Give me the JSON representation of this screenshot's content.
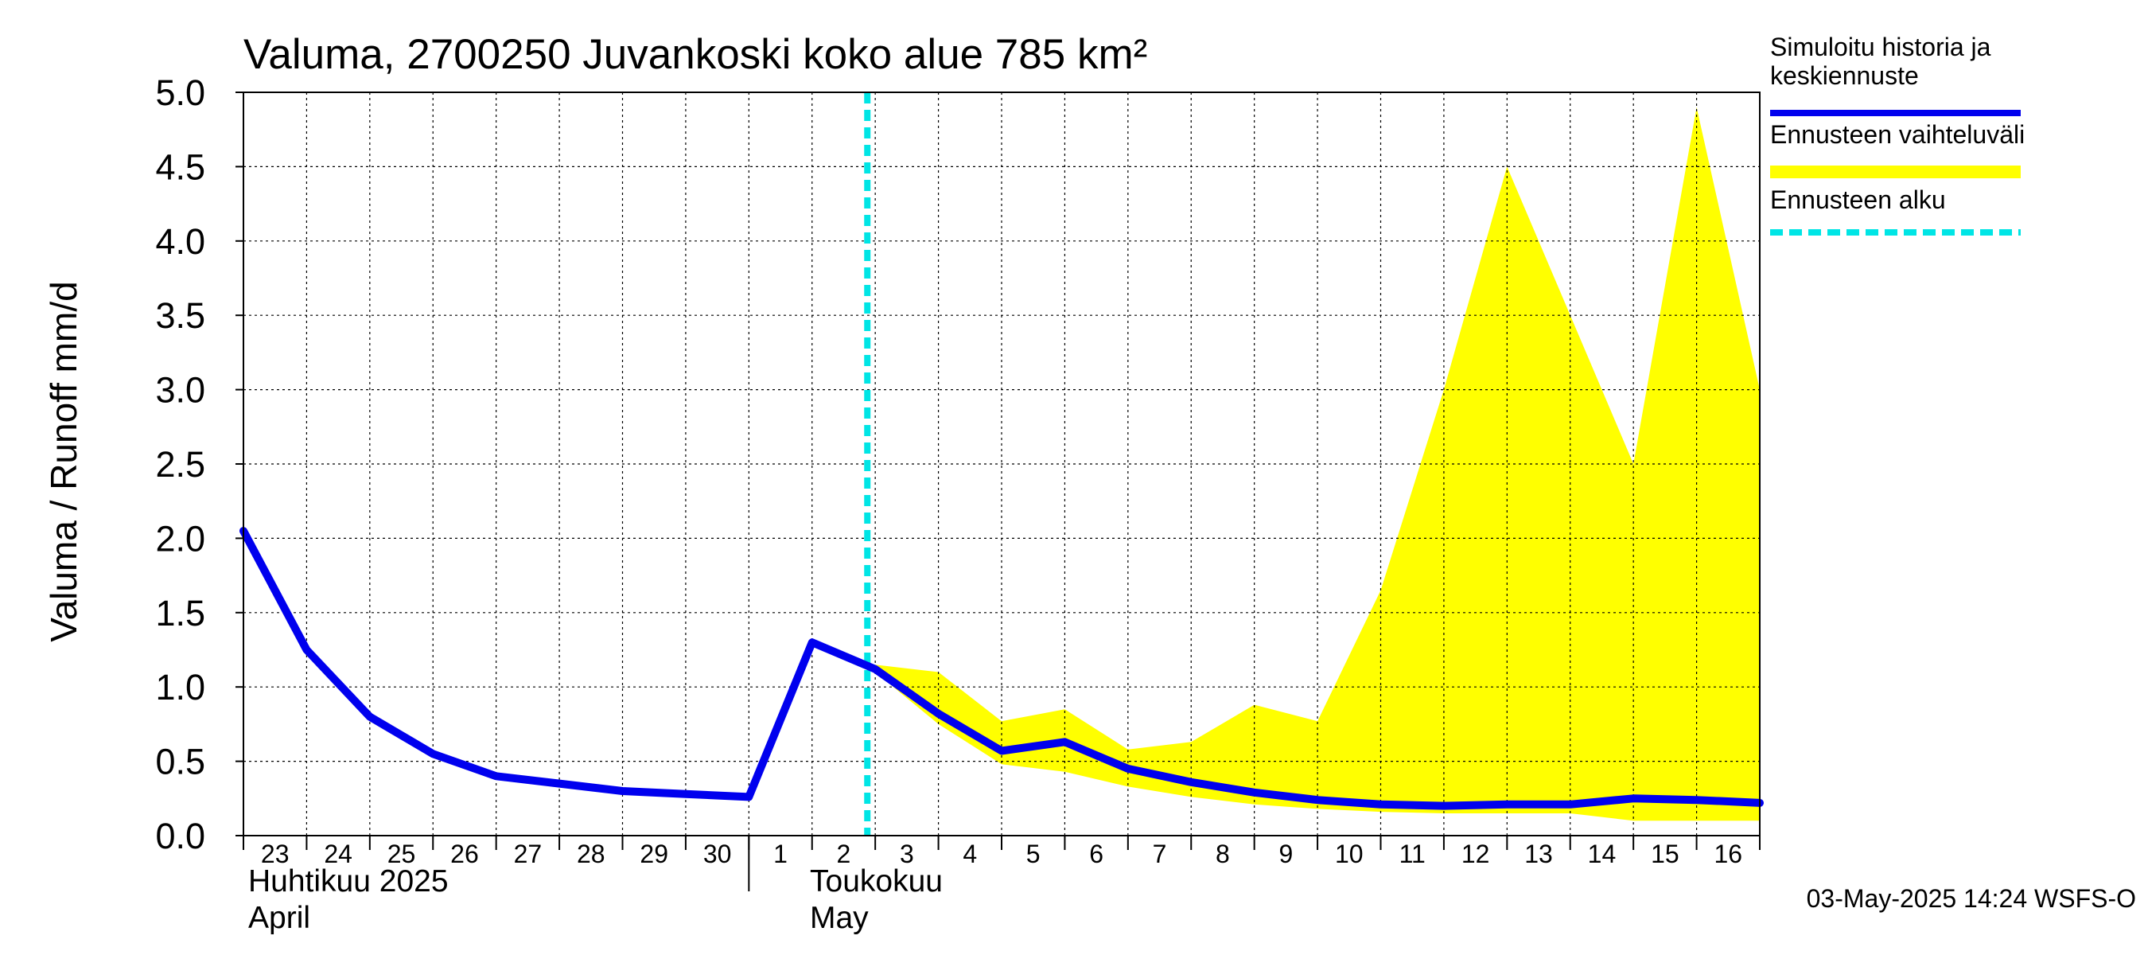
{
  "chart_data": {
    "type": "line",
    "title": "Valuma, 2700250 Juvankoski koko alue 785 km²",
    "ylabel": "Valuma / Runoff     mm/d",
    "ylim": [
      0,
      5.0
    ],
    "y_ticks": [
      "0.0",
      "0.5",
      "1.0",
      "1.5",
      "2.0",
      "2.5",
      "3.0",
      "3.5",
      "4.0",
      "4.5",
      "5.0"
    ],
    "grid": true,
    "legend_position": "right",
    "x_tick_labels": [
      "23",
      "24",
      "25",
      "26",
      "27",
      "28",
      "29",
      "30",
      "1",
      "2",
      "3",
      "4",
      "5",
      "6",
      "7",
      "8",
      "9",
      "10",
      "11",
      "12",
      "13",
      "14",
      "15",
      "16"
    ],
    "month_labels": [
      {
        "line1": "Huhtikuu  2025",
        "line2": "April"
      },
      {
        "line1": "Toukokuu",
        "line2": "May"
      }
    ],
    "x_start": "2025-04-23",
    "x_end": "2025-05-17",
    "series": [
      {
        "name": "Simuloitu historia ja keskiennuste",
        "color": "#0000ee",
        "x": [
          "2025-04-23",
          "2025-04-24",
          "2025-04-25",
          "2025-04-26",
          "2025-04-27",
          "2025-04-28",
          "2025-04-29",
          "2025-04-30",
          "2025-05-01",
          "2025-05-02",
          "2025-05-03",
          "2025-05-04",
          "2025-05-05",
          "2025-05-06",
          "2025-05-07",
          "2025-05-08",
          "2025-05-09",
          "2025-05-10",
          "2025-05-11",
          "2025-05-12",
          "2025-05-13",
          "2025-05-14",
          "2025-05-15",
          "2025-05-16",
          "2025-05-17"
        ],
        "values": [
          2.05,
          1.25,
          0.8,
          0.55,
          0.4,
          0.35,
          0.3,
          0.28,
          0.26,
          1.3,
          1.12,
          0.82,
          0.57,
          0.63,
          0.45,
          0.36,
          0.29,
          0.24,
          0.21,
          0.2,
          0.21,
          0.21,
          0.25,
          0.24,
          0.22
        ]
      },
      {
        "name": "Ennusteen vaihteluväli",
        "color": "#ffff00",
        "type": "area",
        "x": [
          "2025-05-03",
          "2025-05-04",
          "2025-05-05",
          "2025-05-06",
          "2025-05-07",
          "2025-05-08",
          "2025-05-09",
          "2025-05-10",
          "2025-05-11",
          "2025-05-12",
          "2025-05-13",
          "2025-05-14",
          "2025-05-15",
          "2025-05-16",
          "2025-05-17"
        ],
        "upper": [
          1.15,
          1.1,
          0.77,
          0.85,
          0.58,
          0.63,
          0.88,
          0.77,
          1.65,
          3.0,
          4.5,
          3.5,
          2.5,
          4.9,
          3.0
        ],
        "lower": [
          1.1,
          0.75,
          0.48,
          0.43,
          0.33,
          0.26,
          0.21,
          0.18,
          0.16,
          0.15,
          0.15,
          0.15,
          0.1,
          0.1,
          0.1
        ]
      }
    ],
    "forecast_start": {
      "name": "Ennusteen alku",
      "x": "2025-05-02T21:00",
      "color": "#00e5e5"
    }
  },
  "legend": [
    {
      "label": "Simuloitu historia ja\nkeskiennuste",
      "color": "#0000ee",
      "style": "solid"
    },
    {
      "label": "Ennusteen vaihteluväli",
      "color": "#ffff00",
      "style": "solid"
    },
    {
      "label": "Ennusteen alku",
      "color": "#00e5e5",
      "style": "dashed"
    }
  ],
  "footer": "03-May-2025 14:24 WSFS-O"
}
